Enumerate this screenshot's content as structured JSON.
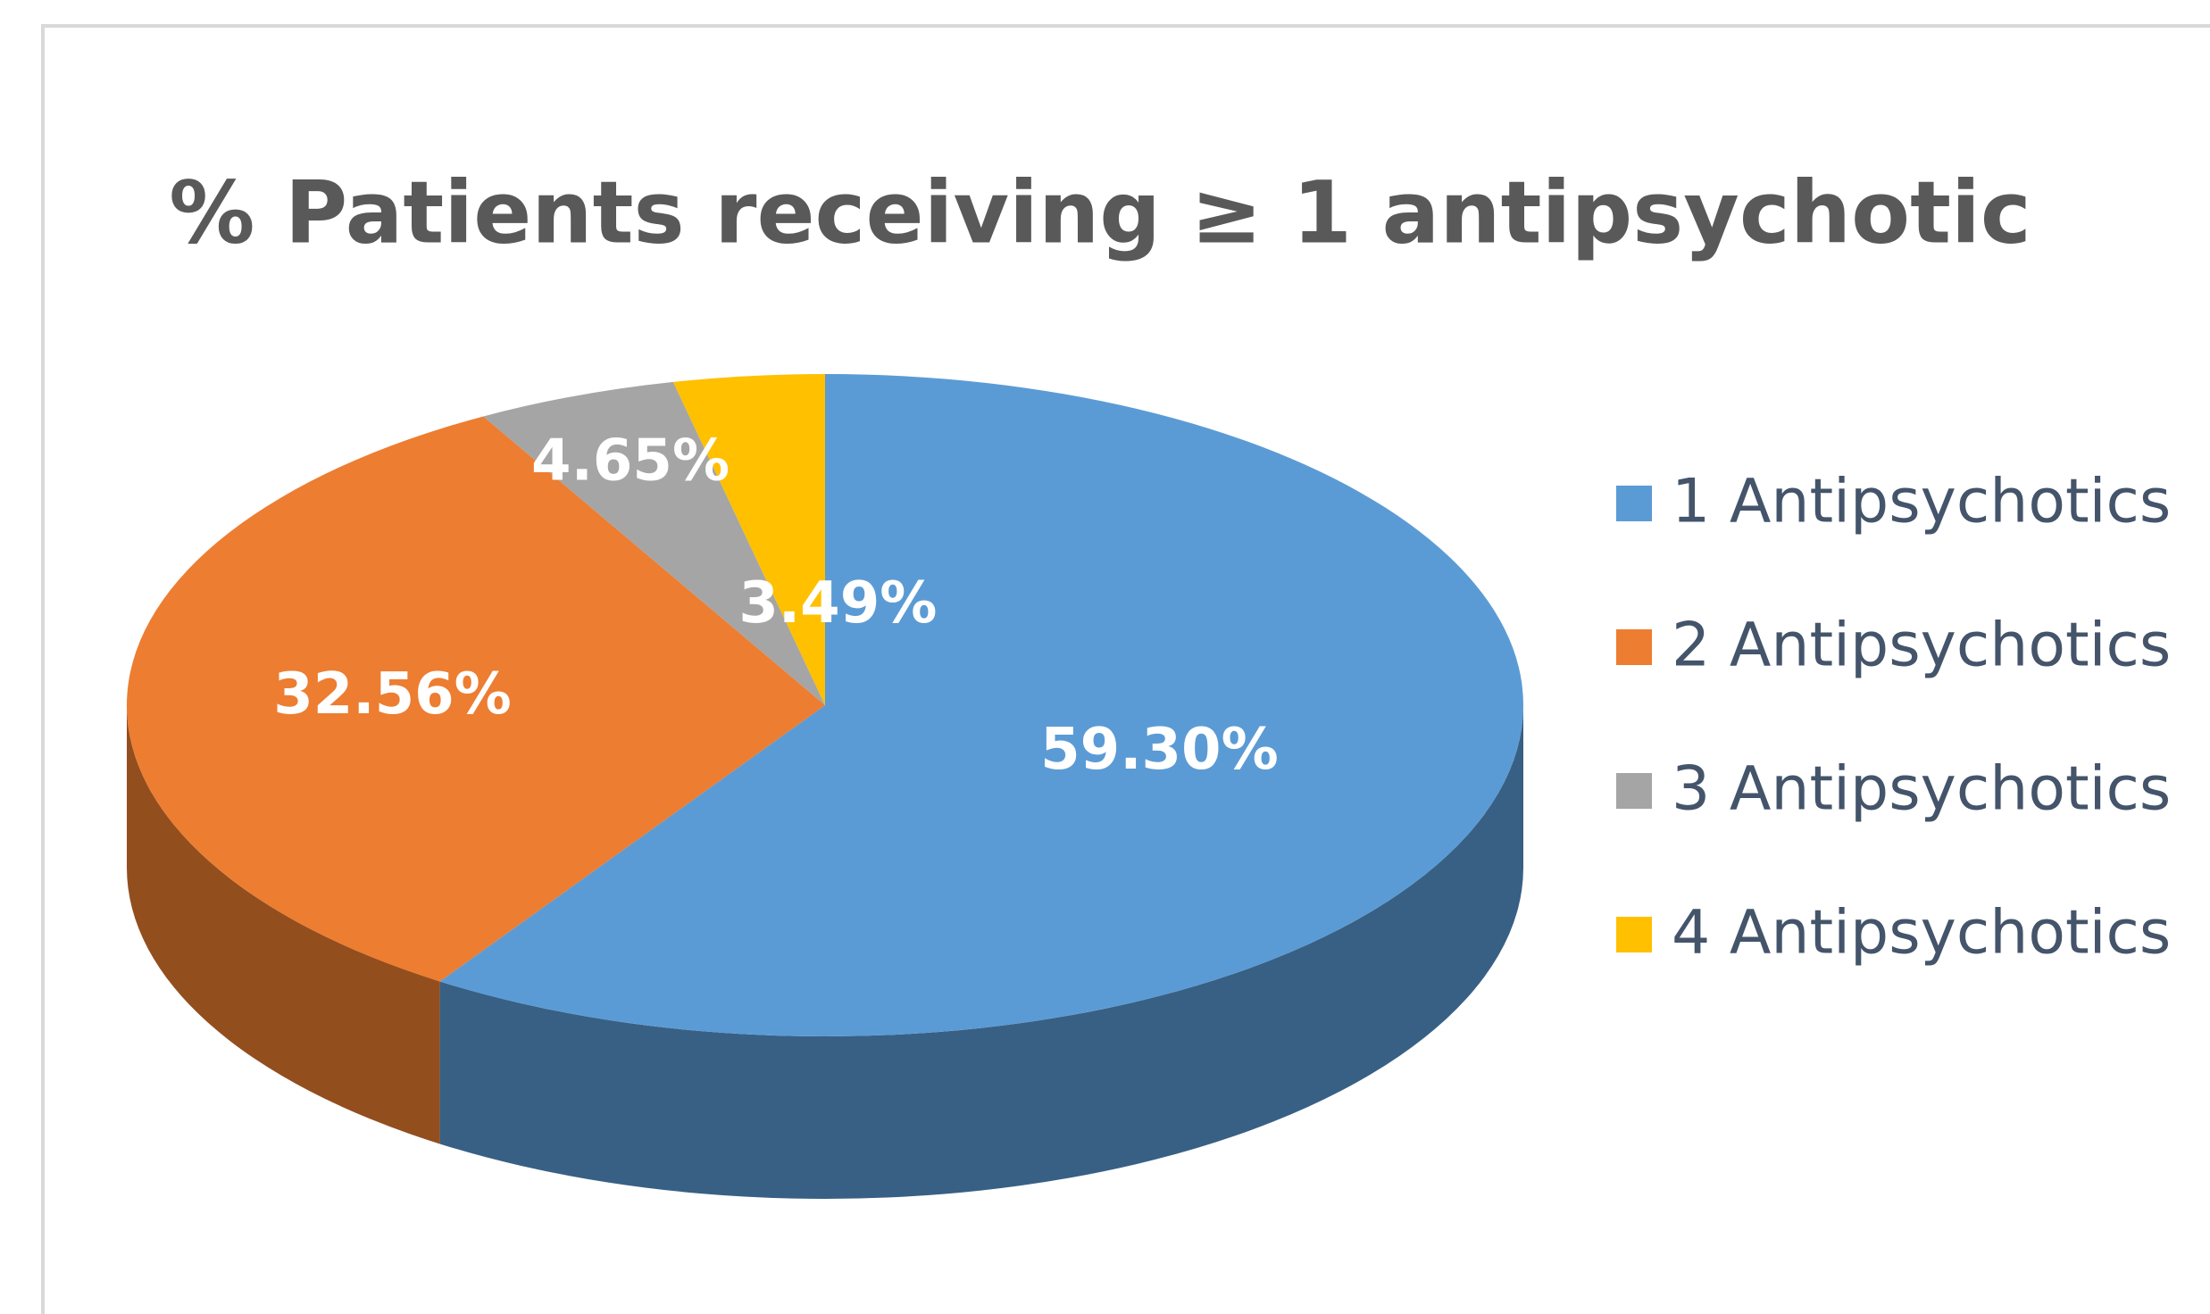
{
  "chart_data": {
    "type": "pie3d",
    "title": "% Patients receiving ≥ 1 antipsychotic",
    "categories": [
      "1 Antipsychotics",
      "2 Antipsychotics",
      "3 Antipsychotics",
      "4 Antipsychotics"
    ],
    "values": [
      59.3,
      32.56,
      4.65,
      3.49
    ],
    "value_labels": [
      "59.30%",
      "32.56%",
      "4.65%",
      "3.49%"
    ],
    "colors": [
      "#5b9bd5",
      "#ed7d31",
      "#a5a5a5",
      "#ffc000"
    ],
    "legend": "right"
  }
}
